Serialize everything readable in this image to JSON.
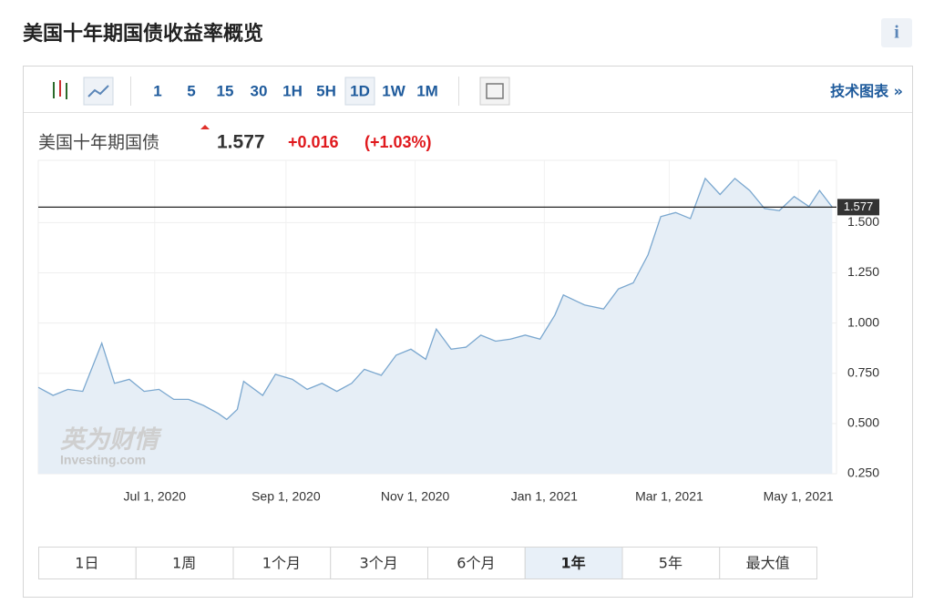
{
  "page": {
    "title": "美国十年期国债收益率概览",
    "info": "i",
    "toolbar": {
      "intervals": [
        "1",
        "5",
        "15",
        "30",
        "1H",
        "5H",
        "1D",
        "1W",
        "1M"
      ],
      "selected": "1D",
      "link": "技术图表 »"
    },
    "quote": {
      "name": "美国十年期国债",
      "change": "+0.016",
      "change_pct": "(+1.03%)"
    },
    "watermark": {
      "brand": "英为财情",
      "site": "Investing.com"
    },
    "ranges": [
      "1日",
      "1周",
      "1个月",
      "3个月",
      "6个月",
      "1年",
      "5年",
      "最大值"
    ],
    "selected_range": "1年"
  },
  "chart_data": {
    "type": "area",
    "last_value": 1.577,
    "last_label_color": "#333333",
    "x": [
      "2020-05-07",
      "2020-05-14",
      "2020-05-21",
      "2020-05-28",
      "2020-06-06",
      "2020-06-12",
      "2020-06-19",
      "2020-06-26",
      "2020-07-03",
      "2020-07-10",
      "2020-07-17",
      "2020-07-24",
      "2020-07-31",
      "2020-08-04",
      "2020-08-09",
      "2020-08-12",
      "2020-08-21",
      "2020-08-27",
      "2020-09-04",
      "2020-09-11",
      "2020-09-18",
      "2020-09-25",
      "2020-10-02",
      "2020-10-08",
      "2020-10-16",
      "2020-10-23",
      "2020-10-30",
      "2020-11-06",
      "2020-11-11",
      "2020-11-18",
      "2020-11-25",
      "2020-12-02",
      "2020-12-09",
      "2020-12-16",
      "2020-12-23",
      "2020-12-30",
      "2021-01-06",
      "2021-01-10",
      "2021-01-20",
      "2021-01-29",
      "2021-02-05",
      "2021-02-12",
      "2021-02-19",
      "2021-02-25",
      "2021-03-04",
      "2021-03-11",
      "2021-03-18",
      "2021-03-25",
      "2021-04-01",
      "2021-04-08",
      "2021-04-15",
      "2021-04-22",
      "2021-04-29",
      "2021-05-06",
      "2021-05-11",
      "2021-05-17"
    ],
    "series": [
      {
        "name": "美国十年期国债",
        "color": "#7aa7cf",
        "fill": "#e6eef6",
        "values": [
          0.68,
          0.64,
          0.67,
          0.66,
          0.9,
          0.7,
          0.72,
          0.66,
          0.67,
          0.62,
          0.62,
          0.59,
          0.55,
          0.52,
          0.57,
          0.71,
          0.64,
          0.745,
          0.72,
          0.67,
          0.7,
          0.66,
          0.7,
          0.77,
          0.74,
          0.84,
          0.87,
          0.82,
          0.97,
          0.87,
          0.88,
          0.94,
          0.91,
          0.92,
          0.94,
          0.92,
          1.04,
          1.14,
          1.09,
          1.07,
          1.17,
          1.2,
          1.34,
          1.53,
          1.55,
          1.52,
          1.72,
          1.64,
          1.72,
          1.66,
          1.57,
          1.56,
          1.63,
          1.58,
          1.66,
          1.577
        ]
      }
    ],
    "xlim": [
      "2020-05-07",
      "2021-05-19"
    ],
    "xticks": [
      {
        "value": "2020-07-01",
        "label": "Jul 1, 2020"
      },
      {
        "value": "2020-09-01",
        "label": "Sep 1, 2020"
      },
      {
        "value": "2020-11-01",
        "label": "Nov 1, 2020"
      },
      {
        "value": "2021-01-01",
        "label": "Jan 1, 2021"
      },
      {
        "value": "2021-03-01",
        "label": "Mar 1, 2021"
      },
      {
        "value": "2021-05-01",
        "label": "May 1, 2021"
      }
    ],
    "ylim": [
      0.25,
      1.81
    ],
    "yticks": [
      {
        "value": 0.25,
        "label": "0.250"
      },
      {
        "value": 0.5,
        "label": "0.500"
      },
      {
        "value": 0.75,
        "label": "0.750"
      },
      {
        "value": 1,
        "label": "1.000"
      },
      {
        "value": 1.25,
        "label": "1.250"
      },
      {
        "value": 1.5,
        "label": "1.500"
      }
    ],
    "grid": true
  }
}
